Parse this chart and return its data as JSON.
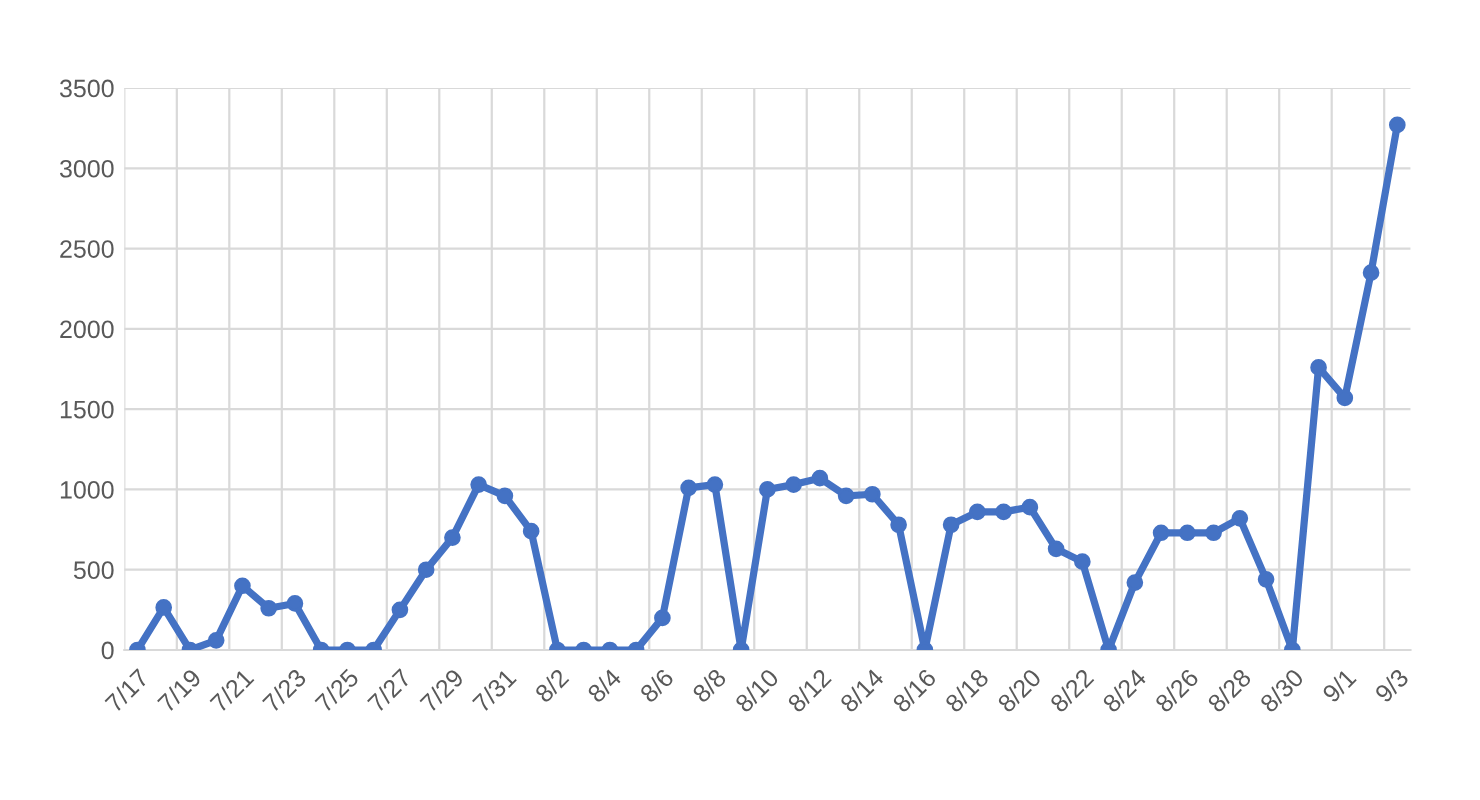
{
  "chart_data": {
    "type": "line",
    "categories": [
      "7/17",
      null,
      "7/19",
      null,
      "7/21",
      null,
      "7/23",
      null,
      "7/25",
      null,
      "7/27",
      null,
      "7/29",
      null,
      "7/31",
      null,
      "8/2",
      null,
      "8/4",
      null,
      "8/6",
      null,
      "8/8",
      null,
      "8/10",
      null,
      "8/12",
      null,
      "8/14",
      null,
      "8/16",
      null,
      "8/18",
      null,
      "8/20",
      null,
      "8/22",
      null,
      "8/24",
      null,
      "8/26",
      null,
      "8/28",
      null,
      "8/30",
      null,
      "9/1",
      null,
      "9/3"
    ],
    "series": [
      {
        "color": "#4472c4",
        "values": [
          0,
          265,
          0,
          60,
          400,
          260,
          290,
          0,
          0,
          0,
          250,
          500,
          700,
          1030,
          960,
          740,
          0,
          0,
          0,
          0,
          200,
          1010,
          1030,
          0,
          1000,
          1030,
          1070,
          960,
          970,
          780,
          0,
          780,
          860,
          860,
          890,
          630,
          550,
          0,
          420,
          730,
          730,
          730,
          820,
          440,
          0,
          1760,
          1570,
          2350,
          3270
        ]
      }
    ],
    "ylim": [
      0,
      3500
    ],
    "yticks": [
      0,
      500,
      1000,
      1500,
      2000,
      2500,
      3000,
      3500
    ],
    "grid": true,
    "marker": "circle",
    "line_style": "solid",
    "legend": false
  }
}
